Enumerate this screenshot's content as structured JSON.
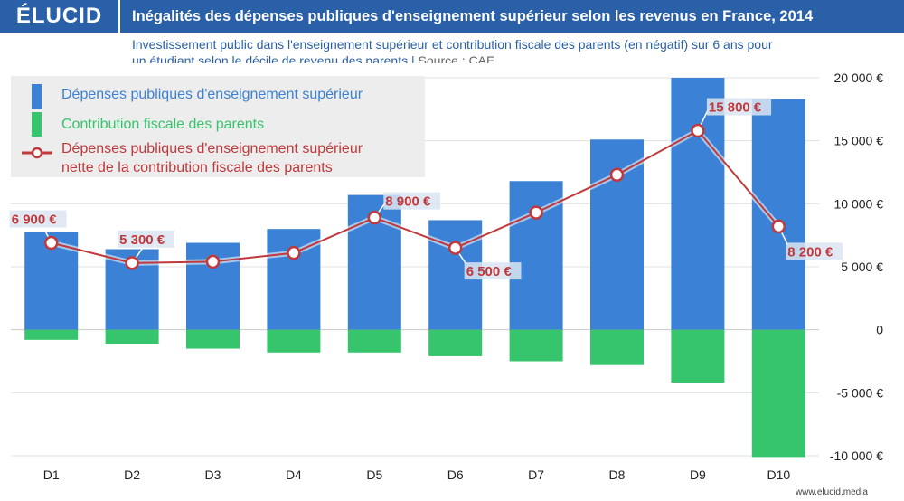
{
  "header": {
    "logo": "ÉLUCID",
    "title": "Inégalités des dépenses publiques d'enseignement supérieur selon les revenus en France, 2014"
  },
  "subtitle": {
    "line1": "Investissement public dans l'enseignement supérieur et contribution fiscale des parents (en négatif) sur 6 ans pour",
    "line2": "un étudiant selon le décile de revenu des parents |",
    "source": "Source : CAE"
  },
  "footer": {
    "url": "www.elucid.media"
  },
  "colors": {
    "header": "#2a60a8",
    "spending": "#3b82d6",
    "contribution": "#36c46c",
    "net": "#c0393b"
  },
  "legend": {
    "spending": "Dépenses publiques d'enseignement supérieur",
    "contribution": "Contribution fiscale des parents",
    "net_line1": "Dépenses publiques d'enseignement supérieur",
    "net_line2": "nette de la contribution fiscale des parents"
  },
  "chart_data": {
    "type": "bar",
    "title": "Inégalités des dépenses publiques d'enseignement supérieur selon les revenus en France, 2014",
    "categories": [
      "D1",
      "D2",
      "D3",
      "D4",
      "D5",
      "D6",
      "D7",
      "D8",
      "D9",
      "D10"
    ],
    "series": [
      {
        "name": "Dépenses publiques d'enseignement supérieur",
        "type": "bar",
        "values": [
          7800,
          6400,
          6900,
          8000,
          10700,
          8700,
          11800,
          15100,
          20000,
          18300
        ]
      },
      {
        "name": "Contribution fiscale des parents",
        "type": "bar",
        "values": [
          -800,
          -1100,
          -1500,
          -1800,
          -1800,
          -2100,
          -2500,
          -2800,
          -4200,
          -10100
        ]
      },
      {
        "name": "Dépenses publiques d'enseignement supérieur nette de la contribution fiscale des parents",
        "type": "line",
        "values": [
          6900,
          5300,
          5400,
          6100,
          8900,
          6500,
          9300,
          12300,
          15800,
          8200
        ]
      }
    ],
    "data_labels": [
      {
        "index": 0,
        "text": "6 900 €"
      },
      {
        "index": 1,
        "text": "5 300 €"
      },
      {
        "index": 4,
        "text": "8 900 €"
      },
      {
        "index": 5,
        "text": "6 500 €"
      },
      {
        "index": 8,
        "text": "15 800 €"
      },
      {
        "index": 9,
        "text": "8 200 €"
      }
    ],
    "yticks": [
      -10000,
      -5000,
      0,
      5000,
      10000,
      15000,
      20000
    ],
    "ytick_labels": [
      "-10 000 €",
      "-5 000 €",
      "0",
      "5 000 €",
      "10 000 €",
      "15 000 €",
      "20 000 €"
    ],
    "ylim": [
      -10000,
      20000
    ],
    "xlabel": "",
    "ylabel": "",
    "grid": true,
    "legend_position": "top-left"
  }
}
